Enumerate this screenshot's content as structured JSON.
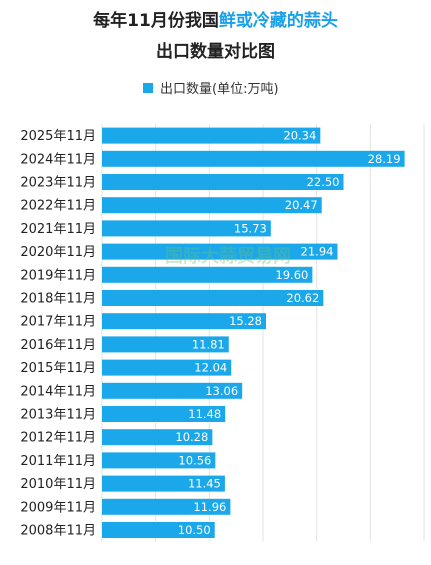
{
  "chart_data": {
    "type": "bar",
    "orientation": "horizontal",
    "title_line1_prefix": "每年11月份我国",
    "title_line1_highlight": "鲜或冷藏的蒜头",
    "title_line2": "出口数量对比图",
    "legend": {
      "label": "出口数量(单位:万吨)",
      "placement": "top",
      "color": "#1aa8ea"
    },
    "watermark": "国际大蒜贸易网",
    "colors": {
      "bar": "#1aa8ea",
      "title_highlight": "#1aa0e6"
    },
    "xlim": [
      0,
      30
    ],
    "grid": true,
    "categories": [
      "2025年11月",
      "2024年11月",
      "2023年11月",
      "2022年11月",
      "2021年11月",
      "2020年11月",
      "2019年11月",
      "2018年11月",
      "2017年11月",
      "2016年11月",
      "2015年11月",
      "2014年11月",
      "2013年11月",
      "2012年11月",
      "2011年11月",
      "2010年11月",
      "2009年11月",
      "2008年11月"
    ],
    "series": [
      {
        "name": "出口数量(单位:万吨)",
        "values": [
          20.34,
          28.19,
          22.5,
          20.47,
          15.73,
          21.94,
          19.6,
          20.62,
          15.28,
          11.81,
          12.04,
          13.06,
          11.48,
          10.28,
          10.56,
          11.45,
          11.96,
          10.5
        ],
        "labels": [
          "20.34",
          "28.19",
          "22.50",
          "20.47",
          "15.73",
          "21.94",
          "19.60",
          "20.62",
          "15.28",
          "11.81",
          "12.04",
          "13.06",
          "11.48",
          "10.28",
          "10.56",
          "11.45",
          "11.96",
          "10.50"
        ]
      }
    ]
  }
}
